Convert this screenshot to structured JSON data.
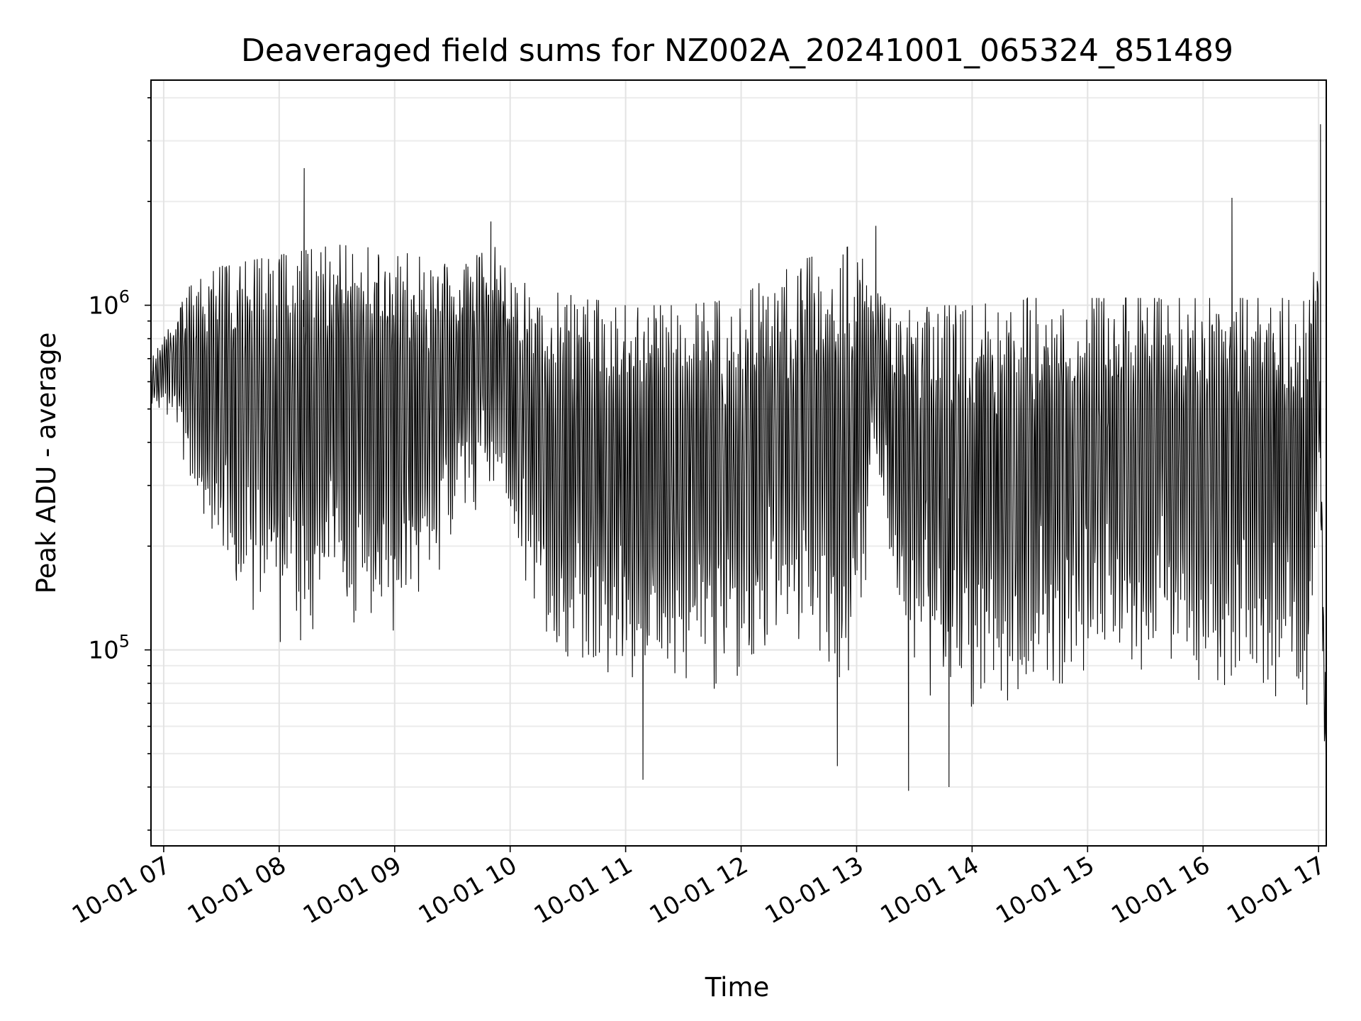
{
  "chart_data": {
    "type": "line",
    "title": "Deaveraged field sums for NZ002A_20241001_065324_851489",
    "xlabel": "Time",
    "ylabel": "Peak ADU - average",
    "y_scale": "log",
    "ylim": [
      27000,
      4500000
    ],
    "xlim": [
      "2024-10-01T06:53:24",
      "2024-10-01T17:04:00"
    ],
    "x_ticks": [
      {
        "time": "2024-10-01T07:00:00",
        "label": "10-01 07"
      },
      {
        "time": "2024-10-01T08:00:00",
        "label": "10-01 08"
      },
      {
        "time": "2024-10-01T09:00:00",
        "label": "10-01 09"
      },
      {
        "time": "2024-10-01T10:00:00",
        "label": "10-01 10"
      },
      {
        "time": "2024-10-01T11:00:00",
        "label": "10-01 11"
      },
      {
        "time": "2024-10-01T12:00:00",
        "label": "10-01 12"
      },
      {
        "time": "2024-10-01T13:00:00",
        "label": "10-01 13"
      },
      {
        "time": "2024-10-01T14:00:00",
        "label": "10-01 14"
      },
      {
        "time": "2024-10-01T15:00:00",
        "label": "10-01 15"
      },
      {
        "time": "2024-10-01T16:00:00",
        "label": "10-01 16"
      },
      {
        "time": "2024-10-01T17:00:00",
        "label": "10-01 17"
      }
    ],
    "y_ticks": [
      {
        "value": 100000,
        "base": "10",
        "exp": "5"
      },
      {
        "value": 1000000,
        "base": "10",
        "exp": "6"
      }
    ],
    "grid": true,
    "color": "#000000",
    "envelope": {
      "description_of_series": "dense oscillating time series",
      "times": [
        "06:53",
        "07:00",
        "07:10",
        "07:20",
        "07:30",
        "08:00",
        "08:30",
        "09:00",
        "09:30",
        "09:55",
        "10:00",
        "10:20",
        "10:40",
        "11:00",
        "11:30",
        "12:00",
        "12:20",
        "12:40",
        "13:00",
        "13:10",
        "13:20",
        "13:40",
        "14:00",
        "14:30",
        "15:00",
        "15:30",
        "16:00",
        "16:30",
        "16:55",
        "17:00",
        "17:03",
        "17:04"
      ],
      "upper": [
        700000,
        800000,
        1100000,
        1200000,
        1300000,
        1400000,
        1500000,
        1450000,
        1300000,
        1500000,
        1200000,
        1100000,
        1050000,
        1000000,
        1000000,
        1050000,
        1300000,
        1400000,
        1500000,
        1100000,
        950000,
        1000000,
        1000000,
        1050000,
        1050000,
        1050000,
        1050000,
        1050000,
        1050000,
        1500000,
        95000,
        80000
      ],
      "lower": [
        450000,
        500000,
        350000,
        200000,
        150000,
        100000,
        110000,
        90000,
        200000,
        300000,
        200000,
        90000,
        80000,
        75000,
        70000,
        70000,
        90000,
        80000,
        75000,
        350000,
        100000,
        70000,
        60000,
        60000,
        80000,
        80000,
        75000,
        70000,
        60000,
        300000,
        50000,
        28000
      ],
      "spikes": [
        {
          "time": "08:13",
          "value": 2500000
        },
        {
          "time": "09:50",
          "value": 1750000
        },
        {
          "time": "13:10",
          "value": 1700000
        },
        {
          "time": "16:15",
          "value": 2050000
        },
        {
          "time": "17:01",
          "value": 3350000
        },
        {
          "time": "11:09",
          "value": 42000
        },
        {
          "time": "13:27",
          "value": 39000
        },
        {
          "time": "13:48",
          "value": 40000
        },
        {
          "time": "12:50",
          "value": 46000
        }
      ]
    }
  }
}
